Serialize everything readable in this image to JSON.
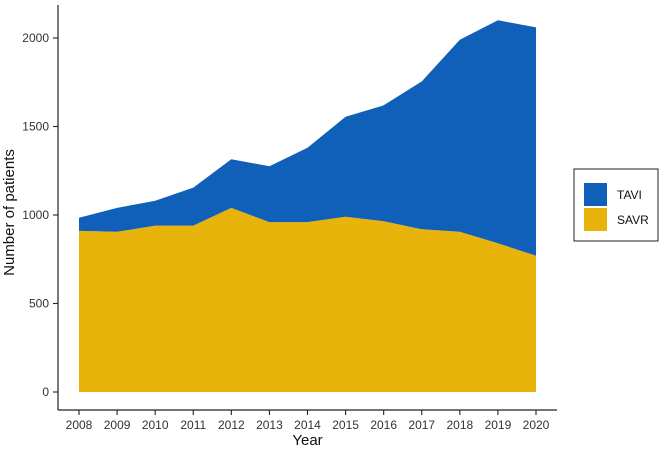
{
  "chart_data": {
    "type": "area",
    "stacked": true,
    "x": [
      2008,
      2009,
      2010,
      2011,
      2012,
      2013,
      2014,
      2015,
      2016,
      2017,
      2018,
      2019,
      2020
    ],
    "series": [
      {
        "name": "SAVR",
        "color": "#E8B40C",
        "values": [
          910,
          905,
          940,
          940,
          1040,
          960,
          960,
          990,
          965,
          920,
          905,
          840,
          770
        ]
      },
      {
        "name": "TAVI",
        "color": "#1060BA",
        "values": [
          75,
          135,
          140,
          215,
          275,
          315,
          420,
          565,
          655,
          835,
          1085,
          1260,
          1290
        ]
      }
    ],
    "title": "",
    "xlabel": "Year",
    "ylabel": "Number of patients",
    "xlim": [
      2008,
      2020
    ],
    "ylim": [
      0,
      2000
    ],
    "yticks": [
      0,
      500,
      1000,
      1500,
      2000
    ],
    "grid": false,
    "legend": {
      "placement": "right",
      "order": [
        "TAVI",
        "SAVR"
      ]
    }
  }
}
